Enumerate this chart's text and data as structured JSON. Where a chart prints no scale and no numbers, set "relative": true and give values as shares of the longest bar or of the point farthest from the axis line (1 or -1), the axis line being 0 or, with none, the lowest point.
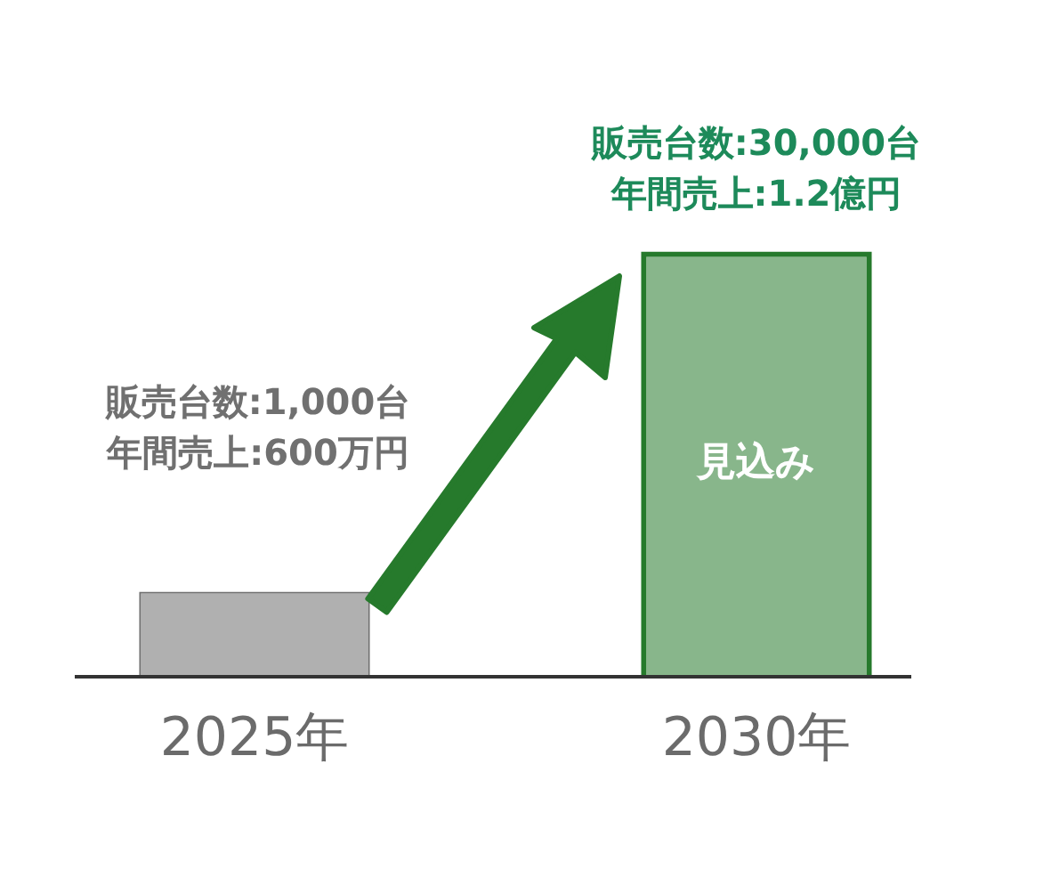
{
  "chart_data": {
    "type": "bar",
    "relative": true,
    "categories": [
      "2025年",
      "2030年"
    ],
    "values": [
      0.2,
      1
    ],
    "colors": [
      "#707070",
      "#267a2c"
    ],
    "annotations": [
      "販売台数:30,000台",
      "年間売上:1.2億円",
      "販売台数:1,000台",
      "年間売上:600万円",
      "見込み"
    ],
    "grid": false,
    "legend": false
  }
}
